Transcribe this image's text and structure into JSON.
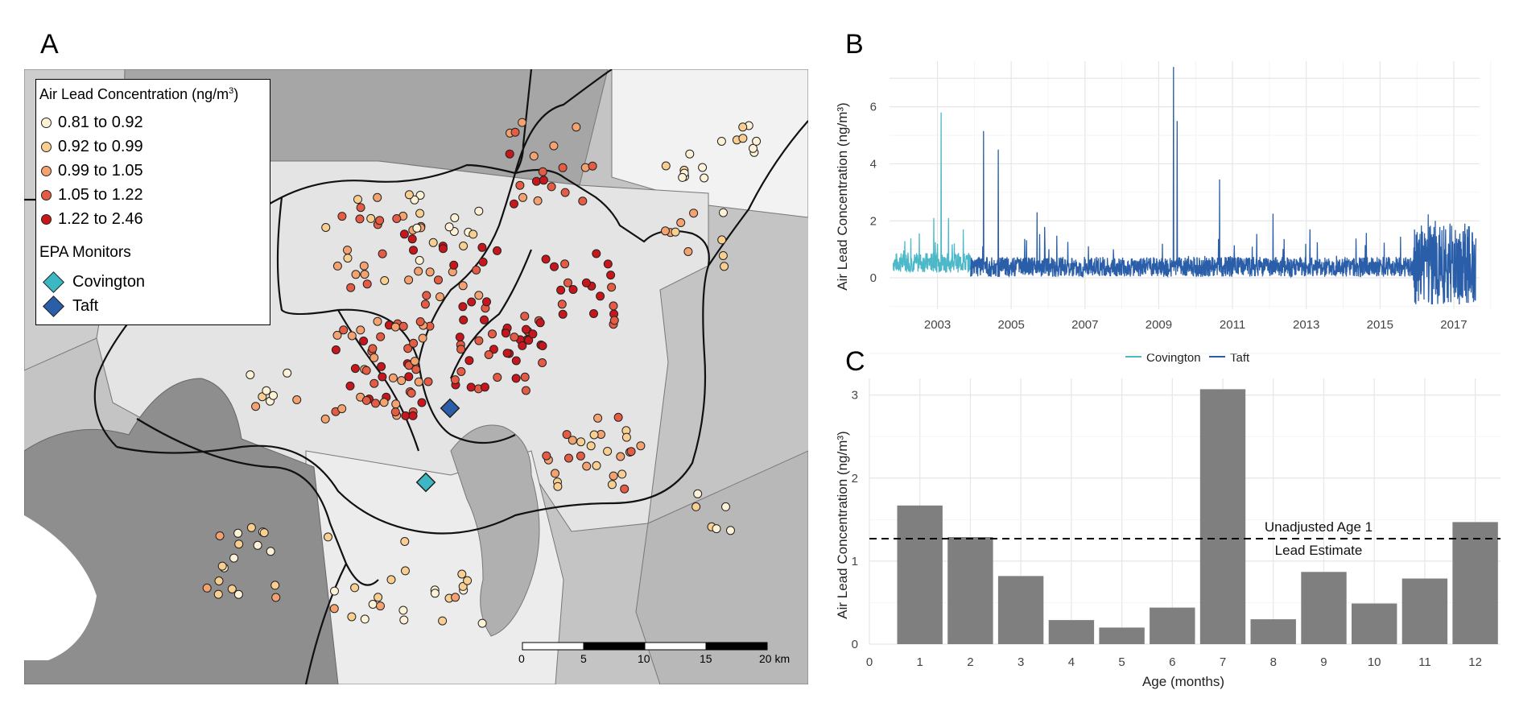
{
  "panels": {
    "a": "A",
    "b": "B",
    "c": "C"
  },
  "map": {
    "legend_title_main": "Air Lead Concentration (ng/m",
    "legend_title_sup": "3",
    "legend_title_end": ")",
    "classes": [
      {
        "label": "0.81 to 0.92",
        "color": "#fdf1d6"
      },
      {
        "label": "0.92 to 0.99",
        "color": "#f9cf91"
      },
      {
        "label": "0.99 to 1.05",
        "color": "#f4a26f"
      },
      {
        "label": "1.05 to 1.22",
        "color": "#e55c44"
      },
      {
        "label": "1.22 to 2.46",
        "color": "#c8171c"
      }
    ],
    "monitors_title": "EPA Monitors",
    "monitors": [
      {
        "label": "Covington",
        "color": "#3cb8c4"
      },
      {
        "label": "Taft",
        "color": "#2a5ea8"
      }
    ],
    "scalebar": {
      "ticks": [
        "0",
        "5",
        "10",
        "15",
        "20 km"
      ]
    }
  },
  "chart_data": [
    {
      "type": "line",
      "panel": "B",
      "ylabel": "Air Lead Concentration (ng/m³)",
      "xlim": [
        2001.7,
        2017.7
      ],
      "ylim": [
        -1.1,
        7.6
      ],
      "x_ticks": [
        2003,
        2005,
        2007,
        2009,
        2011,
        2013,
        2015,
        2017
      ],
      "y_ticks": [
        0,
        2,
        4,
        6
      ],
      "legend": "bottom",
      "series": [
        {
          "name": "Covington",
          "color": "#4db8c8",
          "x_range": [
            2001.8,
            2003.9
          ],
          "baseline": 0.5,
          "spikes": [
            [
              2002.9,
              2.1
            ],
            [
              2003.1,
              5.8
            ],
            [
              2003.3,
              2.1
            ],
            [
              2003.7,
              1.7
            ]
          ]
        },
        {
          "name": "Taft",
          "color": "#2a5ea8",
          "x_range": [
            2003.9,
            2017.6
          ],
          "baseline": 0.35,
          "spikes": [
            [
              2004.25,
              5.15
            ],
            [
              2004.65,
              4.5
            ],
            [
              2005.7,
              2.3
            ],
            [
              2009.4,
              7.4
            ],
            [
              2009.5,
              5.5
            ],
            [
              2010.65,
              3.45
            ],
            [
              2012.1,
              2.25
            ],
            [
              2013.1,
              1.7
            ],
            [
              2016.5,
              2.0
            ],
            [
              2016.9,
              1.9
            ],
            [
              2017.3,
              1.9
            ]
          ]
        }
      ]
    },
    {
      "type": "bar",
      "panel": "C",
      "xlabel": "Age (months)",
      "ylabel": "Air Lead Concentration (ng/m³)",
      "categories": [
        "1",
        "2",
        "3",
        "4",
        "5",
        "6",
        "7",
        "8",
        "9",
        "10",
        "11",
        "12"
      ],
      "values": [
        1.67,
        1.29,
        0.82,
        0.29,
        0.2,
        0.44,
        3.07,
        0.3,
        0.87,
        0.49,
        0.79,
        1.47
      ],
      "x_ticks": [
        "0",
        "1",
        "2",
        "3",
        "4",
        "5",
        "6",
        "7",
        "8",
        "9",
        "10",
        "11",
        "12"
      ],
      "y_ticks": [
        0,
        1,
        2,
        3
      ],
      "xlim": [
        0,
        12.5
      ],
      "ylim": [
        0,
        3.2
      ],
      "reference_line": {
        "value": 1.27,
        "label_1": "Unadjusted Age 1",
        "label_2": "Lead Estimate"
      }
    }
  ]
}
